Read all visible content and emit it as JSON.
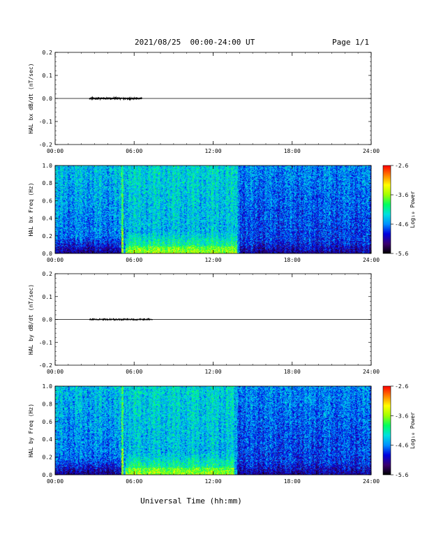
{
  "header": {
    "date_range": "2021/08/25  00:00-24:00 UT",
    "page_label": "Page 1/1"
  },
  "footer": {
    "xlabel": "Universal Time (hh:mm)"
  },
  "colors": {
    "trace": "#000000",
    "colormap": [
      "#000000",
      "#3a0070",
      "#0000e0",
      "#0090ff",
      "#00e0e0",
      "#00ff60",
      "#a0ff00",
      "#ffff00",
      "#ff8000",
      "#ff0000"
    ]
  },
  "chart_data": [
    {
      "type": "line",
      "ylabel": "HAL bx dB/dt (nT/sec)",
      "ylim": [
        -0.2,
        0.2
      ],
      "yticks": [
        "0.2",
        "0.1",
        "0.0",
        "-0.1",
        "-0.2"
      ],
      "yticks_values": [
        0.2,
        0.1,
        0.0,
        -0.1,
        -0.2
      ],
      "xlim": [
        0,
        24
      ],
      "xticks": [
        "00:00",
        "06:00",
        "12:00",
        "18:00",
        "24:00"
      ],
      "xticks_values": [
        0,
        6,
        12,
        18,
        24
      ],
      "baseline": 0.0,
      "noise_span_hours": [
        2.6,
        6.6
      ],
      "noise_amplitude": 0.003
    },
    {
      "type": "heatmap",
      "ylabel": "HAL bx Freq (Hz)",
      "ylim": [
        0,
        1.0
      ],
      "yticks": [
        "1.0",
        "0.8",
        "0.6",
        "0.4",
        "0.2",
        "0.0"
      ],
      "yticks_values": [
        1.0,
        0.8,
        0.6,
        0.4,
        0.2,
        0.0
      ],
      "xlim": [
        0,
        24
      ],
      "xticks": [
        "00:00",
        "06:00",
        "12:00",
        "18:00",
        "24:00"
      ],
      "xticks_values": [
        0,
        6,
        12,
        18,
        24
      ],
      "colorbar": {
        "label": "Log₁₀ Power",
        "range": [
          -5.6,
          -2.6
        ],
        "ticks": [
          "-2.6",
          "-3.6",
          "-4.6",
          "-5.6"
        ],
        "ticks_values": [
          -2.6,
          -3.6,
          -4.6,
          -5.6
        ]
      },
      "feature_lines_hours": [
        5.1
      ],
      "quiet_after_hours": 14.0,
      "enhanced_low_freq_hours": [
        5.3,
        13.8
      ]
    },
    {
      "type": "line",
      "ylabel": "HAL by dB/dt (nT/sec)",
      "ylim": [
        -0.2,
        0.2
      ],
      "yticks": [
        "0.2",
        "0.1",
        "0.0",
        "-0.1",
        "-0.2"
      ],
      "yticks_values": [
        0.2,
        0.1,
        0.0,
        -0.1,
        -0.2
      ],
      "xlim": [
        0,
        24
      ],
      "xticks": [
        "00:00",
        "06:00",
        "12:00",
        "18:00",
        "24:00"
      ],
      "xticks_values": [
        0,
        6,
        12,
        18,
        24
      ],
      "baseline": 0.0,
      "noise_span_hours": [
        2.6,
        7.4
      ],
      "noise_amplitude": 0.002
    },
    {
      "type": "heatmap",
      "ylabel": "HAL by Freq (Hz)",
      "ylim": [
        0,
        1.0
      ],
      "yticks": [
        "1.0",
        "0.8",
        "0.6",
        "0.4",
        "0.2",
        "0.0"
      ],
      "yticks_values": [
        1.0,
        0.8,
        0.6,
        0.4,
        0.2,
        0.0
      ],
      "xlim": [
        0,
        24
      ],
      "xticks": [
        "00:00",
        "06:00",
        "12:00",
        "18:00",
        "24:00"
      ],
      "xticks_values": [
        0,
        6,
        12,
        18,
        24
      ],
      "colorbar": {
        "label": "Log₁₀ Power",
        "range": [
          -5.6,
          -2.6
        ],
        "ticks": [
          "-2.6",
          "-3.6",
          "-4.6",
          "-5.6"
        ],
        "ticks_values": [
          -2.6,
          -3.6,
          -4.6,
          -5.6
        ]
      },
      "feature_lines_hours": [
        5.1
      ],
      "quiet_after_hours": 13.8,
      "enhanced_low_freq_hours": [
        5.3,
        13.6
      ]
    }
  ]
}
